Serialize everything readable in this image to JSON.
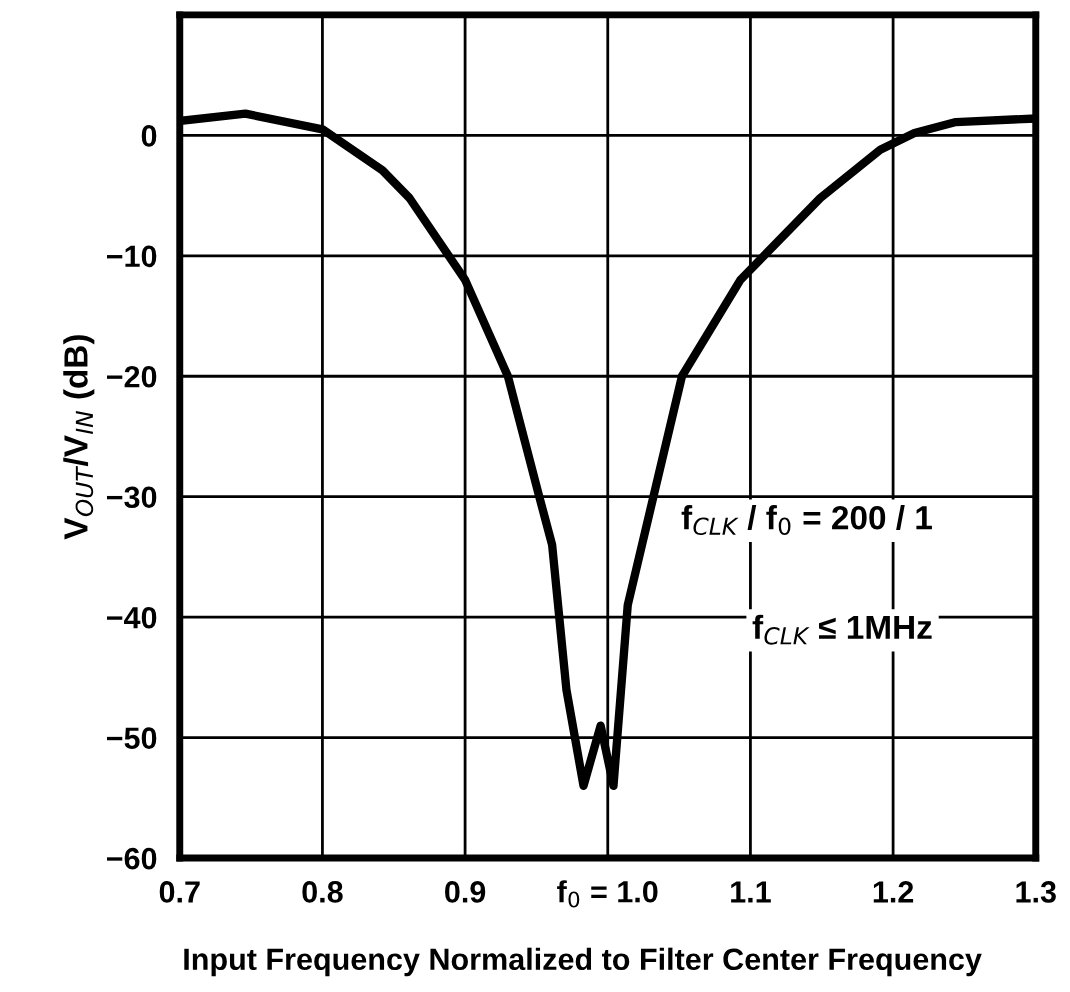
{
  "chart_data": {
    "type": "line",
    "xlabel": "Input Frequency Normalized to Filter Center Frequency",
    "ylabel": "V$_{OUT}$/V$_{IN}$ (dB)",
    "series": [
      {
        "color": "#000000",
        "x": [
          0.7,
          0.746,
          0.8,
          0.842,
          0.861,
          0.9,
          0.93,
          0.952,
          0.961,
          0.971,
          0.983,
          0.995,
          1.004,
          1.014,
          1.024,
          1.034,
          1.052,
          1.093,
          1.149,
          1.191,
          1.215,
          1.244,
          1.3
        ],
        "values": [
          1.2,
          1.8,
          0.5,
          -2.9,
          -5.2,
          -12,
          -20,
          -30,
          -34,
          -46,
          -54,
          -49,
          -54,
          -39,
          -34,
          -29,
          -20,
          -12,
          -5.2,
          -1.2,
          0.2,
          1.1,
          1.4
        ]
      }
    ],
    "xlim": [
      0.7,
      1.3
    ],
    "ylim": [
      -60,
      10
    ],
    "xticks": [
      0.7,
      0.8,
      0.9,
      {
        "value": 1.0,
        "label": "f$_{0}$ = 1.0"
      },
      1.1,
      1.2,
      1.3
    ],
    "yticks": [
      {
        "value": -60,
        "label": "−60"
      },
      {
        "value": -50,
        "label": "−50"
      },
      {
        "value": -40,
        "label": "−40"
      },
      {
        "value": -30,
        "label": "−30"
      },
      {
        "value": -20,
        "label": "−20"
      },
      {
        "value": -10,
        "label": "−10"
      },
      0
    ],
    "annotations": [
      "f$_{CLK}$ / f$_{0}$ = 200 / 1",
      "f$_{CLK}$ ≤ 1MHz"
    ],
    "grid": true,
    "legend": false,
    "marker": "none",
    "line_style": "solid"
  }
}
